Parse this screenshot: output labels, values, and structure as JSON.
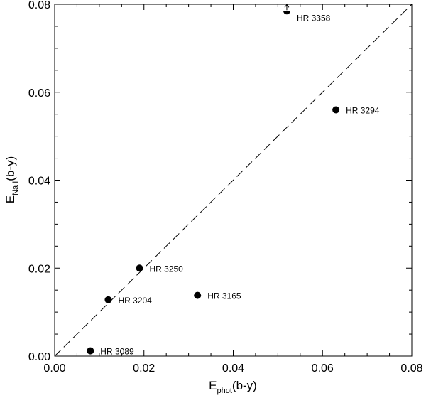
{
  "chart_data": {
    "type": "scatter",
    "xlabel": {
      "main": "E",
      "sub": "phot",
      "suffix": "(b-y)"
    },
    "ylabel": {
      "main": "E",
      "sub": "Na I",
      "suffix": "(b-y)"
    },
    "xlim": [
      0.0,
      0.08
    ],
    "ylim": [
      0.0,
      0.08
    ],
    "xticks": [
      "0.00",
      "0.02",
      "0.04",
      "0.06",
      "0.08"
    ],
    "yticks": [
      "0.00",
      "0.02",
      "0.04",
      "0.06",
      "0.08"
    ],
    "reference_line": {
      "from": [
        0.0,
        0.0
      ],
      "to": [
        0.08,
        0.08
      ],
      "style": "dashed"
    },
    "points": [
      {
        "label": "HR 3358",
        "x": 0.052,
        "y": 0.0785,
        "marker": "half-filled-with-up-arrow"
      },
      {
        "label": "HR 3294",
        "x": 0.063,
        "y": 0.056,
        "marker": "filled"
      },
      {
        "label": "HR 3250",
        "x": 0.019,
        "y": 0.02,
        "marker": "filled"
      },
      {
        "label": "HR 3204",
        "x": 0.012,
        "y": 0.0128,
        "marker": "filled"
      },
      {
        "label": "HR 3165",
        "x": 0.032,
        "y": 0.0138,
        "marker": "filled"
      },
      {
        "label": "HR 3089",
        "x": 0.008,
        "y": 0.0012,
        "marker": "filled"
      }
    ],
    "grid": false,
    "legend": "none"
  }
}
